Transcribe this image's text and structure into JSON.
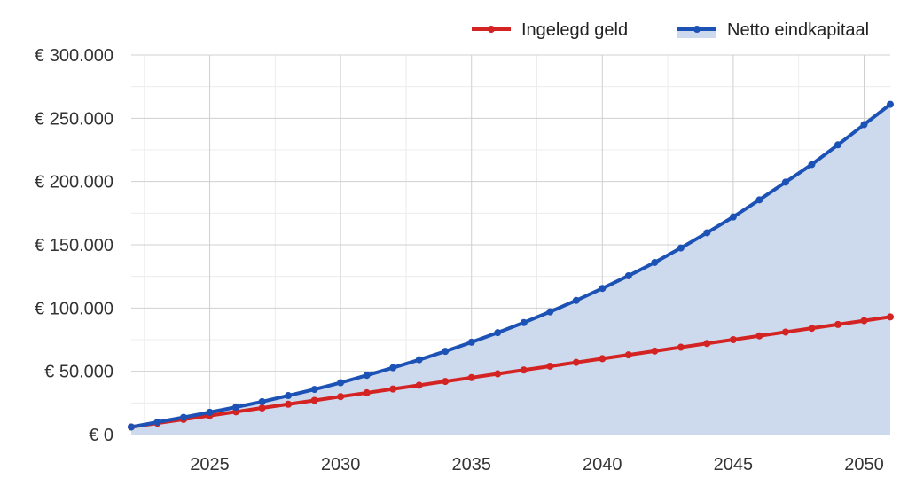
{
  "chart_data": {
    "type": "area",
    "title": "",
    "xlabel": "",
    "ylabel": "",
    "xlim": [
      2022,
      2051
    ],
    "ylim": [
      0,
      300000
    ],
    "x_ticks": [
      2025,
      2030,
      2035,
      2040,
      2045,
      2050
    ],
    "y_ticks": [
      0,
      50000,
      100000,
      150000,
      200000,
      250000,
      300000
    ],
    "y_tick_labels": [
      "€ 0",
      "€ 50.000",
      "€ 100.000",
      "€ 150.000",
      "€ 200.000",
      "€ 250.000",
      "€ 300.000"
    ],
    "grid": true,
    "legend_position": "top-right",
    "x": [
      2022,
      2023,
      2024,
      2025,
      2026,
      2027,
      2028,
      2029,
      2030,
      2031,
      2032,
      2033,
      2034,
      2035,
      2036,
      2037,
      2038,
      2039,
      2040,
      2041,
      2042,
      2043,
      2044,
      2045,
      2046,
      2047,
      2048,
      2049,
      2050,
      2051
    ],
    "series": [
      {
        "name": "Ingelegd geld",
        "color": "#d32323",
        "fill": false,
        "values": [
          6000,
          9000,
          12000,
          15000,
          18000,
          21000,
          24000,
          27000,
          30000,
          33000,
          36000,
          39000,
          42000,
          45000,
          48000,
          51000,
          54000,
          57000,
          60000,
          63000,
          66000,
          69000,
          72000,
          75000,
          78000,
          81000,
          84000,
          87000,
          90000,
          93000
        ]
      },
      {
        "name": "Netto eindkapitaal",
        "color": "#1c52b5",
        "fill": true,
        "fill_color": "#cdd9ec",
        "values": [
          6000,
          9800,
          13600,
          17600,
          21700,
          26000,
          30800,
          35700,
          41000,
          46800,
          52800,
          59100,
          65800,
          73000,
          80500,
          88500,
          97000,
          106000,
          115500,
          125500,
          136000,
          147500,
          159500,
          172000,
          185500,
          199500,
          213500,
          229000,
          245000,
          261000
        ]
      }
    ]
  }
}
